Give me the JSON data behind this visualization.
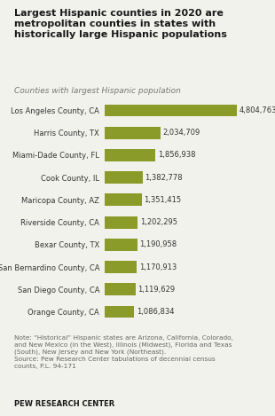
{
  "title": "Largest Hispanic counties in 2020 are\nmetropolitan counties in states with\nhistorically large Hispanic populations",
  "subtitle": "Counties with largest Hispanic population",
  "categories": [
    "Los Angeles County, CA",
    "Harris County, TX",
    "Miami-Dade County, FL",
    "Cook County, IL",
    "Maricopa County, AZ",
    "Riverside County, CA",
    "Bexar County, TX",
    "San Bernardino County, CA",
    "San Diego County, CA",
    "Orange County, CA"
  ],
  "values": [
    4804763,
    2034709,
    1856938,
    1382778,
    1351415,
    1202295,
    1190958,
    1170913,
    1119629,
    1086834
  ],
  "labels": [
    "4,804,763",
    "2,034,709",
    "1,856,938",
    "1,382,778",
    "1,351,415",
    "1,202,295",
    "1,190,958",
    "1,170,913",
    "1,119,629",
    "1,086,834"
  ],
  "bar_color": "#8B9B2A",
  "background_color": "#f2f2ed",
  "title_color": "#1a1a1a",
  "subtitle_color": "#777777",
  "label_color": "#333333",
  "note_text": "Note: “Historical” Hispanic states are Arizona, California, Colorado,\nand New Mexico (in the West), Illinois (Midwest), Florida and Texas\n(South), New Jersey and New York (Northeast).\nSource: Pew Research Center tabulations of decennial census\ncounts, P.L. 94-171",
  "source_label": "PEW RESEARCH CENTER",
  "xlim": [
    0,
    5800000
  ]
}
